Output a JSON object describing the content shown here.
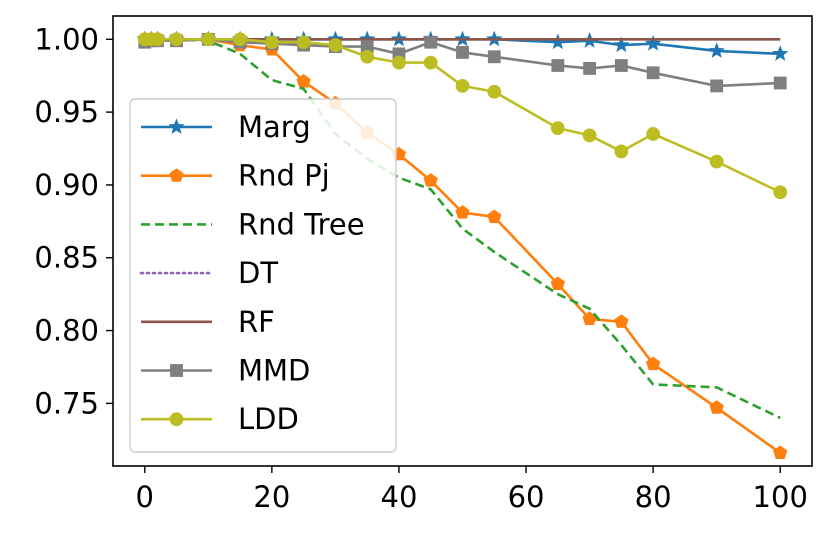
{
  "chart_data": {
    "type": "line",
    "title": "",
    "xlabel": "",
    "ylabel": "",
    "xlim": [
      -5,
      105
    ],
    "ylim": [
      0.707,
      1.016
    ],
    "x_ticks": [
      0,
      20,
      40,
      60,
      80,
      100
    ],
    "x_tick_labels": [
      "0",
      "20",
      "40",
      "60",
      "80",
      "100"
    ],
    "y_ticks": [
      1.0,
      0.95,
      0.9,
      0.85,
      0.8,
      0.75
    ],
    "y_tick_labels": [
      "1.00",
      "0.95",
      "0.90",
      "0.85",
      "0.80",
      "0.75"
    ],
    "grid": false,
    "legend_position": "lower-left",
    "series": [
      {
        "name": "Marg",
        "color": "#1f77b4",
        "style": "solid",
        "marker": "star",
        "x": [
          0,
          1,
          2,
          5,
          10,
          15,
          20,
          25,
          30,
          35,
          40,
          45,
          50,
          55,
          65,
          70,
          75,
          80,
          90,
          100
        ],
        "y": [
          1.0,
          1.0,
          1.0,
          1.0,
          1.0,
          1.0,
          1.0,
          1.0,
          1.0,
          1.0,
          1.0,
          1.0,
          1.0,
          1.0,
          0.998,
          0.999,
          0.996,
          0.997,
          0.992,
          0.99
        ]
      },
      {
        "name": "Rnd Pj",
        "color": "#ff7f0e",
        "style": "solid",
        "marker": "pentagon",
        "x": [
          0,
          1,
          2,
          5,
          10,
          15,
          20,
          25,
          30,
          35,
          40,
          45,
          50,
          55,
          65,
          70,
          75,
          80,
          90,
          100
        ],
        "y": [
          1.0,
          1.0,
          1.0,
          1.0,
          1.0,
          0.996,
          0.993,
          0.971,
          0.956,
          0.936,
          0.921,
          0.903,
          0.881,
          0.878,
          0.832,
          0.808,
          0.806,
          0.777,
          0.747,
          0.716
        ]
      },
      {
        "name": "Rnd Tree",
        "color": "#2ca02c",
        "style": "dashed",
        "marker": "none",
        "x": [
          0,
          1,
          2,
          5,
          10,
          15,
          20,
          25,
          30,
          35,
          40,
          45,
          50,
          55,
          65,
          70,
          75,
          80,
          90,
          100
        ],
        "y": [
          1.0,
          1.0,
          1.0,
          1.0,
          0.999,
          0.99,
          0.972,
          0.966,
          0.935,
          0.918,
          0.905,
          0.897,
          0.87,
          0.854,
          0.825,
          0.815,
          0.79,
          0.763,
          0.761,
          0.74
        ]
      },
      {
        "name": "DT",
        "color": "#9467bd",
        "style": "dotted",
        "marker": "none",
        "x": [
          0,
          100
        ],
        "y": [
          1.0,
          1.0
        ]
      },
      {
        "name": "RF",
        "color": "#8c564b",
        "style": "solid",
        "marker": "none",
        "x": [
          0,
          100
        ],
        "y": [
          1.0,
          1.0
        ]
      },
      {
        "name": "MMD",
        "color": "#7f7f7f",
        "style": "solid",
        "marker": "square",
        "x": [
          0,
          1,
          2,
          5,
          10,
          15,
          20,
          25,
          30,
          35,
          40,
          45,
          50,
          55,
          65,
          70,
          75,
          80,
          90,
          100
        ],
        "y": [
          0.998,
          0.999,
          0.999,
          0.999,
          1.0,
          0.998,
          0.997,
          0.996,
          0.995,
          0.995,
          0.99,
          0.998,
          0.991,
          0.988,
          0.982,
          0.98,
          0.982,
          0.977,
          0.968,
          0.97
        ]
      },
      {
        "name": "LDD",
        "color": "#bcbd22",
        "style": "solid",
        "marker": "circle",
        "x": [
          0,
          1,
          2,
          5,
          10,
          15,
          20,
          25,
          30,
          35,
          40,
          45,
          50,
          55,
          65,
          70,
          75,
          80,
          90,
          100
        ],
        "y": [
          1.0,
          1.0,
          1.0,
          1.0,
          1.0,
          1.0,
          0.998,
          0.998,
          0.996,
          0.988,
          0.984,
          0.984,
          0.968,
          0.964,
          0.939,
          0.934,
          0.923,
          0.935,
          0.916,
          0.895
        ]
      }
    ]
  }
}
